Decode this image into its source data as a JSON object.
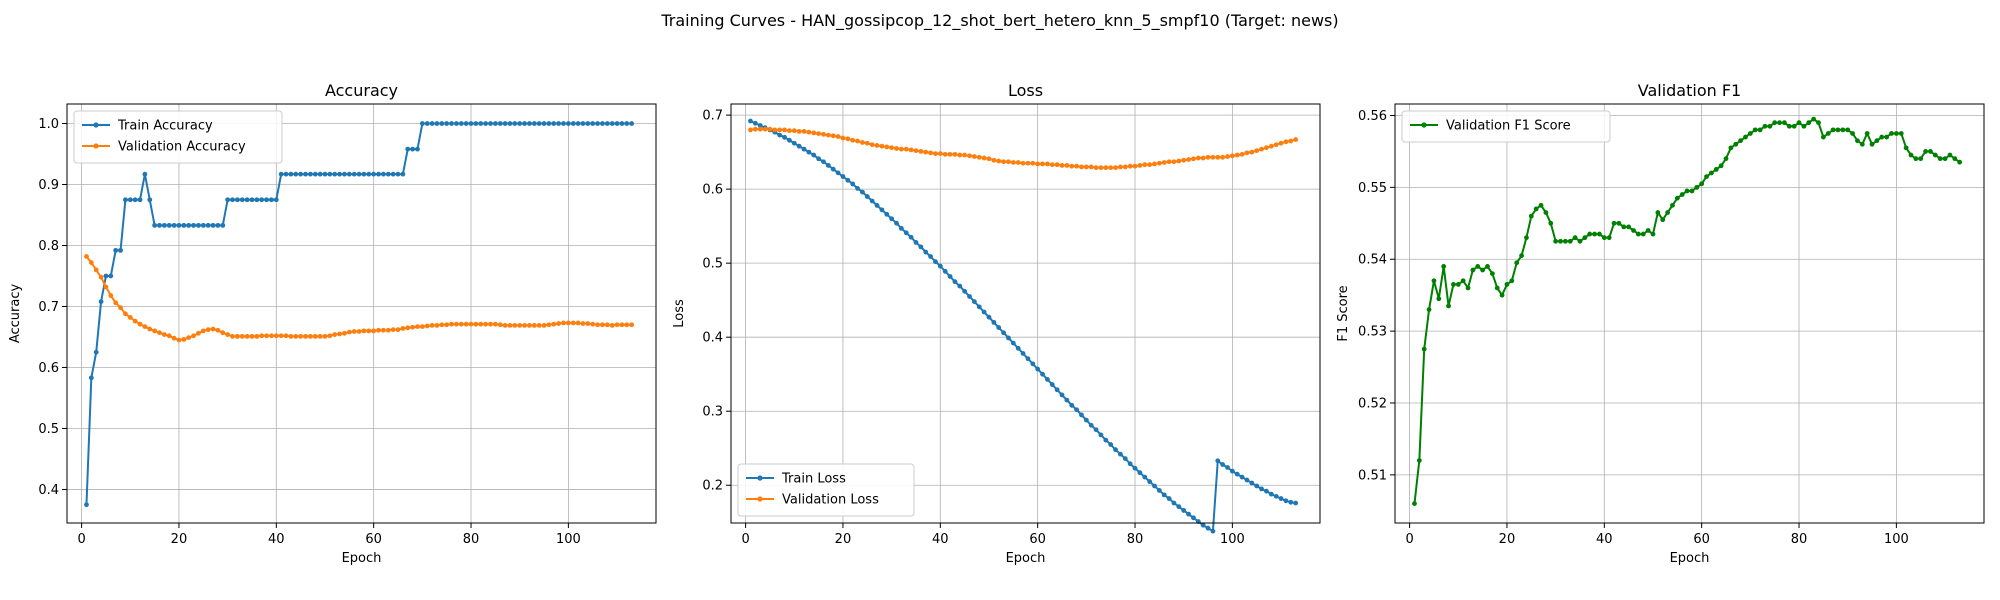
{
  "figure": {
    "suptitle": "Training Curves - HAN_gossipcop_12_shot_bert_hetero_knn_5_smpf10 (Target: news)"
  },
  "chart_data": [
    {
      "type": "line",
      "title": "Accuracy",
      "xlabel": "Epoch",
      "ylabel": "Accuracy",
      "xlim": [
        -3,
        118
      ],
      "ylim": [
        0.345,
        1.032
      ],
      "xticks": [
        0,
        20,
        40,
        60,
        80,
        100
      ],
      "yticks": [
        0.4,
        0.5,
        0.6,
        0.7,
        0.8,
        0.9,
        1.0
      ],
      "ytick_decimals": 1,
      "grid": true,
      "legend": "upper left",
      "series": [
        {
          "name": "Train Accuracy",
          "color": "#1f77b4",
          "x_start": 1,
          "values": [
            0.375,
            0.583,
            0.625,
            0.708,
            0.75,
            0.75,
            0.792,
            0.792,
            0.875,
            0.875,
            0.875,
            0.875,
            0.917,
            0.875,
            0.833,
            0.833,
            0.833,
            0.833,
            0.833,
            0.833,
            0.833,
            0.833,
            0.833,
            0.833,
            0.833,
            0.833,
            0.833,
            0.833,
            0.833,
            0.875,
            0.875,
            0.875,
            0.875,
            0.875,
            0.875,
            0.875,
            0.875,
            0.875,
            0.875,
            0.875,
            0.917,
            0.917,
            0.917,
            0.917,
            0.917,
            0.917,
            0.917,
            0.917,
            0.917,
            0.917,
            0.917,
            0.917,
            0.917,
            0.917,
            0.917,
            0.917,
            0.917,
            0.917,
            0.917,
            0.917,
            0.917,
            0.917,
            0.917,
            0.917,
            0.917,
            0.917,
            0.958,
            0.958,
            0.958,
            1.0,
            1.0,
            1.0,
            1.0,
            1.0,
            1.0,
            1.0,
            1.0,
            1.0,
            1.0,
            1.0,
            1.0,
            1.0,
            1.0,
            1.0,
            1.0,
            1.0,
            1.0,
            1.0,
            1.0,
            1.0,
            1.0,
            1.0,
            1.0,
            1.0,
            1.0,
            1.0,
            1.0,
            1.0,
            1.0,
            1.0,
            1.0,
            1.0,
            1.0,
            1.0,
            1.0,
            1.0,
            1.0,
            1.0,
            1.0,
            1.0,
            1.0,
            1.0,
            1.0
          ]
        },
        {
          "name": "Validation Accuracy",
          "color": "#ff7f0e",
          "x_start": 1,
          "values": [
            0.782,
            0.772,
            0.76,
            0.748,
            0.732,
            0.718,
            0.706,
            0.698,
            0.688,
            0.682,
            0.676,
            0.671,
            0.667,
            0.663,
            0.66,
            0.657,
            0.654,
            0.652,
            0.648,
            0.645,
            0.646,
            0.649,
            0.652,
            0.656,
            0.66,
            0.662,
            0.663,
            0.661,
            0.657,
            0.654,
            0.651,
            0.651,
            0.651,
            0.651,
            0.651,
            0.651,
            0.652,
            0.652,
            0.652,
            0.652,
            0.652,
            0.652,
            0.651,
            0.651,
            0.651,
            0.651,
            0.651,
            0.651,
            0.651,
            0.651,
            0.652,
            0.654,
            0.655,
            0.656,
            0.658,
            0.659,
            0.659,
            0.66,
            0.66,
            0.66,
            0.661,
            0.661,
            0.661,
            0.662,
            0.662,
            0.664,
            0.665,
            0.666,
            0.667,
            0.667,
            0.668,
            0.669,
            0.669,
            0.67,
            0.67,
            0.671,
            0.671,
            0.671,
            0.671,
            0.671,
            0.671,
            0.671,
            0.671,
            0.671,
            0.671,
            0.67,
            0.669,
            0.669,
            0.669,
            0.669,
            0.669,
            0.669,
            0.669,
            0.669,
            0.669,
            0.67,
            0.671,
            0.672,
            0.673,
            0.673,
            0.673,
            0.673,
            0.672,
            0.672,
            0.671,
            0.67,
            0.67,
            0.67,
            0.669,
            0.67,
            0.67,
            0.67,
            0.67
          ]
        }
      ]
    },
    {
      "type": "line",
      "title": "Loss",
      "xlabel": "Epoch",
      "ylabel": "Loss",
      "xlim": [
        -3,
        118
      ],
      "ylim": [
        0.149,
        0.715
      ],
      "xticks": [
        0,
        20,
        40,
        60,
        80,
        100
      ],
      "yticks": [
        0.2,
        0.3,
        0.4,
        0.5,
        0.6,
        0.7
      ],
      "ytick_decimals": 1,
      "grid": true,
      "legend": "lower left",
      "series": [
        {
          "name": "Train Loss",
          "color": "#1f77b4",
          "x_start": 1,
          "values": [
            0.692,
            0.689,
            0.686,
            0.683,
            0.68,
            0.677,
            0.673,
            0.67,
            0.666,
            0.662,
            0.658,
            0.654,
            0.65,
            0.646,
            0.641,
            0.637,
            0.632,
            0.627,
            0.622,
            0.617,
            0.612,
            0.607,
            0.601,
            0.596,
            0.59,
            0.584,
            0.578,
            0.572,
            0.566,
            0.56,
            0.554,
            0.547,
            0.541,
            0.535,
            0.528,
            0.522,
            0.515,
            0.509,
            0.502,
            0.496,
            0.489,
            0.482,
            0.475,
            0.469,
            0.462,
            0.455,
            0.448,
            0.441,
            0.434,
            0.427,
            0.42,
            0.413,
            0.406,
            0.399,
            0.392,
            0.385,
            0.378,
            0.371,
            0.364,
            0.357,
            0.35,
            0.343,
            0.336,
            0.329,
            0.322,
            0.315,
            0.308,
            0.302,
            0.295,
            0.288,
            0.281,
            0.275,
            0.268,
            0.261,
            0.255,
            0.248,
            0.242,
            0.236,
            0.229,
            0.223,
            0.217,
            0.211,
            0.205,
            0.199,
            0.193,
            0.187,
            0.182,
            0.176,
            0.171,
            0.166,
            0.161,
            0.156,
            0.151,
            0.146,
            0.142,
            0.138,
            0.233,
            0.228,
            0.224,
            0.219,
            0.215,
            0.211,
            0.207,
            0.203,
            0.199,
            0.195,
            0.192,
            0.188,
            0.185,
            0.182,
            0.179,
            0.177,
            0.176
          ]
        },
        {
          "name": "Validation Loss",
          "color": "#ff7f0e",
          "x_start": 1,
          "values": [
            0.68,
            0.681,
            0.681,
            0.681,
            0.681,
            0.68,
            0.68,
            0.68,
            0.679,
            0.679,
            0.678,
            0.678,
            0.677,
            0.676,
            0.675,
            0.674,
            0.673,
            0.672,
            0.671,
            0.669,
            0.668,
            0.666,
            0.665,
            0.663,
            0.662,
            0.66,
            0.659,
            0.658,
            0.657,
            0.656,
            0.655,
            0.654,
            0.654,
            0.653,
            0.652,
            0.651,
            0.65,
            0.649,
            0.648,
            0.648,
            0.647,
            0.647,
            0.647,
            0.646,
            0.646,
            0.645,
            0.644,
            0.643,
            0.642,
            0.641,
            0.639,
            0.638,
            0.637,
            0.637,
            0.636,
            0.636,
            0.635,
            0.635,
            0.635,
            0.634,
            0.634,
            0.634,
            0.633,
            0.633,
            0.632,
            0.632,
            0.631,
            0.631,
            0.63,
            0.63,
            0.63,
            0.629,
            0.629,
            0.629,
            0.629,
            0.629,
            0.63,
            0.63,
            0.631,
            0.631,
            0.632,
            0.633,
            0.633,
            0.634,
            0.635,
            0.636,
            0.637,
            0.637,
            0.638,
            0.639,
            0.64,
            0.641,
            0.642,
            0.642,
            0.643,
            0.643,
            0.643,
            0.643,
            0.644,
            0.645,
            0.646,
            0.647,
            0.649,
            0.65,
            0.652,
            0.654,
            0.656,
            0.658,
            0.66,
            0.662,
            0.664,
            0.665,
            0.667
          ]
        }
      ]
    },
    {
      "type": "line",
      "title": "Validation F1",
      "xlabel": "Epoch",
      "ylabel": "F1 Score",
      "xlim": [
        -3,
        118
      ],
      "ylim": [
        0.5033,
        0.5616
      ],
      "xticks": [
        0,
        20,
        40,
        60,
        80,
        100
      ],
      "yticks": [
        0.51,
        0.52,
        0.53,
        0.54,
        0.55,
        0.56
      ],
      "ytick_decimals": 2,
      "grid": true,
      "legend": "upper left",
      "series": [
        {
          "name": "Validation F1 Score",
          "color": "#008000",
          "x_start": 1,
          "values": [
            0.506,
            0.512,
            0.5275,
            0.533,
            0.537,
            0.5345,
            0.539,
            0.5335,
            0.5365,
            0.5365,
            0.537,
            0.536,
            0.5385,
            0.539,
            0.5385,
            0.539,
            0.538,
            0.536,
            0.535,
            0.5365,
            0.537,
            0.5395,
            0.5405,
            0.543,
            0.546,
            0.547,
            0.5475,
            0.5465,
            0.545,
            0.5425,
            0.5425,
            0.5425,
            0.5425,
            0.543,
            0.5425,
            0.543,
            0.5435,
            0.5435,
            0.5435,
            0.543,
            0.543,
            0.545,
            0.545,
            0.5445,
            0.5445,
            0.544,
            0.5435,
            0.5435,
            0.544,
            0.5435,
            0.5465,
            0.5455,
            0.5465,
            0.5475,
            0.5485,
            0.549,
            0.5495,
            0.5495,
            0.55,
            0.5505,
            0.5515,
            0.552,
            0.5525,
            0.553,
            0.554,
            0.5555,
            0.556,
            0.5565,
            0.557,
            0.5575,
            0.558,
            0.558,
            0.5585,
            0.5585,
            0.559,
            0.559,
            0.559,
            0.5585,
            0.5585,
            0.559,
            0.5585,
            0.559,
            0.5595,
            0.559,
            0.557,
            0.5575,
            0.558,
            0.558,
            0.558,
            0.558,
            0.5575,
            0.5565,
            0.556,
            0.5575,
            0.556,
            0.5565,
            0.557,
            0.557,
            0.5575,
            0.5575,
            0.5575,
            0.5555,
            0.5545,
            0.554,
            0.554,
            0.555,
            0.555,
            0.5545,
            0.554,
            0.554,
            0.5545,
            0.554,
            0.5535
          ]
        }
      ]
    }
  ]
}
